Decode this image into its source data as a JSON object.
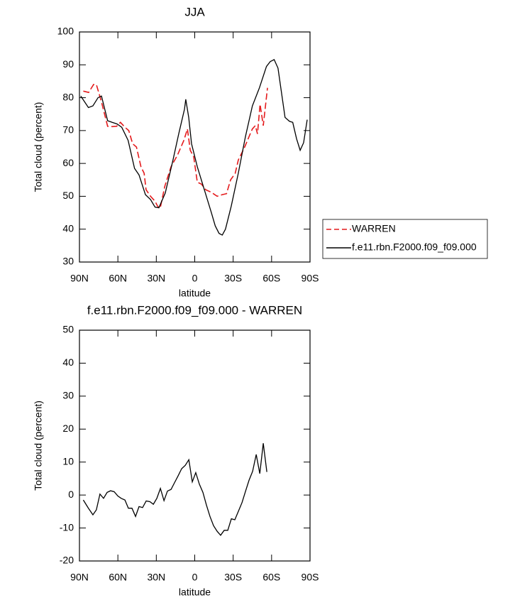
{
  "chart_data": [
    {
      "type": "line",
      "title": "JJA",
      "xlabel": "latitude",
      "ylabel": "Total cloud (percent)",
      "xlim": [
        90,
        -90
      ],
      "ylim": [
        30,
        100
      ],
      "xticks": [
        {
          "value": 90,
          "label": "90N"
        },
        {
          "value": 60,
          "label": "60N"
        },
        {
          "value": 30,
          "label": "30N"
        },
        0,
        {
          "value": -30,
          "label": "30S"
        },
        {
          "value": -60,
          "label": "60S"
        },
        {
          "value": -90,
          "label": "90S"
        }
      ],
      "yticks": [
        30,
        40,
        50,
        60,
        70,
        80,
        90,
        100
      ],
      "legend": "right",
      "series": [
        {
          "name": "WARREN",
          "color": "#e41a1c",
          "linestyle": "dashed",
          "x": [
            87,
            82.8,
            79,
            76.8,
            73,
            68,
            64.5,
            61,
            58,
            54.5,
            51.5,
            48.5,
            45.5,
            42,
            39.5,
            38,
            34.5,
            31,
            29,
            27,
            23.4,
            18.5,
            13.5,
            8.5,
            5.7,
            3.5,
            0.8,
            -2,
            -5.2,
            -8.6,
            -13,
            -17.5,
            -21.5,
            -24.8,
            -28,
            -31.6,
            -34,
            -39,
            -43,
            -45,
            -47.3,
            -49,
            -51,
            -53.5,
            -56.8
          ],
          "values": [
            82,
            81.6,
            84,
            84,
            79,
            71.3,
            71.2,
            71.3,
            72.5,
            71,
            70,
            66,
            65,
            59,
            57,
            52,
            50,
            48.5,
            47,
            46.3,
            53,
            59,
            62.5,
            67,
            70.5,
            64,
            62,
            54.3,
            53.7,
            52,
            51.2,
            50,
            50.5,
            50.8,
            55,
            57,
            61,
            65,
            68.7,
            70.5,
            71.5,
            69,
            78,
            71.5,
            83
          ]
        },
        {
          "name": "f.e11.rbn.F2000.f09_f09.000",
          "color": "#000000",
          "linestyle": "solid",
          "x": [
            89,
            83,
            79.5,
            75.5,
            72.8,
            68,
            64.5,
            60.6,
            57,
            52,
            47,
            43.5,
            38.5,
            34.5,
            31,
            28,
            23,
            17,
            12.5,
            8,
            7,
            4.7,
            2.5,
            -2,
            -7.5,
            -13,
            -16,
            -19,
            -21.5,
            -24,
            -28.5,
            -34,
            -39.5,
            -45,
            -50.5,
            -56,
            -59,
            -62,
            -65,
            -70.5,
            -74,
            -76.5,
            -79.5,
            -82.3,
            -85,
            -87.8
          ],
          "values": [
            80.5,
            77,
            77.5,
            80,
            80.5,
            73,
            72.5,
            72,
            71,
            67,
            58.5,
            56.5,
            50.5,
            49,
            46.7,
            46.5,
            51,
            61,
            69,
            76.5,
            79.5,
            74,
            66,
            59,
            52,
            45,
            41,
            38.7,
            38.2,
            40,
            47,
            57,
            68,
            77.5,
            83,
            89.5,
            91,
            91.6,
            89,
            74,
            72.8,
            72.5,
            67.5,
            64,
            66.3,
            73.3
          ]
        }
      ]
    },
    {
      "type": "line",
      "title": "f.e11.rbn.F2000.f09_f09.000 - WARREN",
      "xlabel": "latitude",
      "ylabel": "Total cloud (percent)",
      "xlim": [
        90,
        -90
      ],
      "ylim": [
        -20,
        50
      ],
      "xticks": [
        {
          "value": 90,
          "label": "90N"
        },
        {
          "value": 60,
          "label": "60N"
        },
        {
          "value": 30,
          "label": "30N"
        },
        0,
        {
          "value": -30,
          "label": "30S"
        },
        {
          "value": -60,
          "label": "60S"
        },
        {
          "value": -90,
          "label": "90S"
        }
      ],
      "yticks": [
        -20,
        -10,
        0,
        10,
        20,
        30,
        40,
        50
      ],
      "color": "#000000",
      "x": [
        87,
        83,
        79.5,
        76.8,
        74,
        71.2,
        68.4,
        65.7,
        62.9,
        60,
        57.4,
        54.5,
        51.8,
        49,
        46.2,
        43.5,
        40.7,
        37.9,
        35,
        32.3,
        29.6,
        26.8,
        24,
        21.3,
        18.5,
        15.7,
        13,
        10.2,
        7.4,
        4.6,
        1.9,
        -0.8,
        -3.6,
        -6.4,
        -9.1,
        -11.9,
        -14.7,
        -17.5,
        -20.2,
        -23,
        -25.8,
        -28.6,
        -31.3,
        -34,
        -36.9,
        -39.7,
        -42.4,
        -45.2,
        -48,
        -50.8,
        -53.5,
        -56.3
      ],
      "values": [
        -1.5,
        -4,
        -6,
        -4.5,
        0.3,
        -1,
        0.8,
        1.3,
        1,
        -0.3,
        -1,
        -1.5,
        -4,
        -4,
        -6.5,
        -3.5,
        -3.8,
        -1.8,
        -2,
        -2.8,
        -1,
        2,
        -1.7,
        1.2,
        1.7,
        3.8,
        5.8,
        8,
        9,
        10.7,
        4,
        6.8,
        3.3,
        0.8,
        -3,
        -6.5,
        -9.3,
        -11,
        -12.2,
        -10.7,
        -10.7,
        -7.2,
        -7.5,
        -5,
        -2.3,
        1.2,
        4.5,
        7.2,
        12.3,
        6.5,
        15.7,
        7
      ]
    }
  ]
}
